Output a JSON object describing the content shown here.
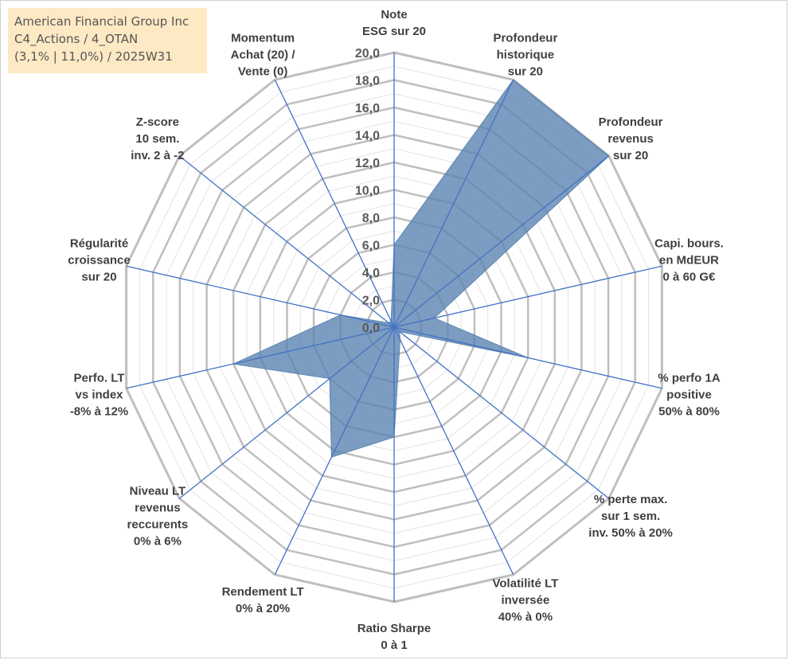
{
  "title_box": {
    "line1": "American Financial Group Inc",
    "line2": "C4_Actions / 4_OTAN",
    "line3": "(3,1% | 11,0%) / 2025W31"
  },
  "colors": {
    "fill": "#5b84b1",
    "spoke": "#4472c4",
    "ring_major": "#bfbfbf",
    "ring_minor": "#e3e3e3",
    "title_bg": "#fde9c4"
  },
  "chart_data": {
    "type": "radar",
    "r_max": 20,
    "r_min": 0,
    "major_step": 2,
    "minor_step": 1,
    "tick_labels": [
      "0,0",
      "2,0",
      "4,0",
      "6,0",
      "8,0",
      "10,0",
      "12,0",
      "14,0",
      "16,0",
      "18,0",
      "20,0"
    ],
    "categories": [
      [
        "Note",
        "ESG sur 20"
      ],
      [
        "Profondeur",
        "historique",
        "sur 20"
      ],
      [
        "Profondeur",
        "revenus",
        "sur 20"
      ],
      [
        "Capi. bours.",
        "en MdEUR",
        "0 à 60 G€"
      ],
      [
        "% perfo 1A",
        "positive",
        "50% à 80%"
      ],
      [
        "% perte max.",
        "sur 1 sem.",
        "inv. 50% à 20%"
      ],
      [
        "Volatilité LT",
        "inversée",
        "40% à 0%"
      ],
      [
        "Ratio Sharpe",
        "0 à 1"
      ],
      [
        "Rendement LT",
        "0% à 20%"
      ],
      [
        "Niveau LT",
        "revenus",
        "reccurents",
        "0% à 6%"
      ],
      [
        "Perfo. LT",
        "vs index",
        "-8% à 12%"
      ],
      [
        "Régularité",
        "croissance",
        "sur 20"
      ],
      [
        "Z-score",
        "10 sem.",
        "inv. 2 à -2"
      ],
      [
        "Momentum",
        "Achat (20) /",
        "Vente (0)"
      ]
    ],
    "series": [
      {
        "values": [
          6.0,
          20.0,
          20.0,
          3.0,
          10.0,
          0.5,
          1.0,
          8.0,
          10.5,
          6.0,
          12.0,
          4.0,
          0.5,
          0.5
        ]
      }
    ]
  }
}
